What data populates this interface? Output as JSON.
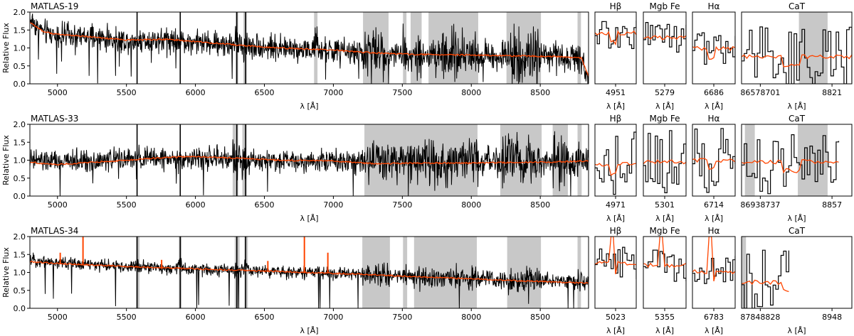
{
  "figure": {
    "ylabel": "Relative Flux",
    "xlabel": "λ [Å]",
    "ylim": [
      0.0,
      2.0
    ],
    "yticks": [
      "0.0",
      "0.5",
      "1.0",
      "1.5",
      "2.0"
    ],
    "colors": {
      "data": "#000000",
      "model": "#ff4500",
      "mask": "#c8c8c8",
      "frame": "#000000"
    }
  },
  "chart_data": [
    {
      "type": "line",
      "title": "MATLAS-19",
      "xlim": [
        4800,
        8850
      ],
      "ylim": [
        0.0,
        2.0
      ],
      "xticks": [
        "5000",
        "5500",
        "6000",
        "6500",
        "7000",
        "7500",
        "8000",
        "8500"
      ],
      "masked_regions": [
        [
          6290,
          6310
        ],
        [
          6348,
          6372
        ],
        [
          6860,
          6885
        ],
        [
          7215,
          7400
        ],
        [
          7505,
          7530
        ],
        [
          7560,
          7640
        ],
        [
          7690,
          8050
        ],
        [
          8255,
          8505
        ],
        [
          8770,
          8795
        ]
      ],
      "series": [
        {
          "role": "data",
          "color": "#000000",
          "noise": 0.24,
          "x": [
            4800,
            4900,
            5000,
            5200,
            5500,
            5800,
            6000,
            6300,
            6600,
            7000,
            7300,
            7600,
            8000,
            8300,
            8600,
            8800,
            8850
          ],
          "y": [
            1.8,
            1.45,
            1.35,
            1.3,
            1.2,
            1.25,
            1.15,
            1.1,
            1.0,
            0.92,
            0.85,
            0.82,
            0.8,
            0.78,
            0.78,
            0.75,
            0.2
          ]
        },
        {
          "role": "model",
          "color": "#ff4500",
          "x": [
            4800,
            4900,
            5000,
            5200,
            5500,
            5800,
            6000,
            6300,
            6600,
            7000,
            7300,
            7600,
            8000,
            8300,
            8600,
            8800,
            8830,
            8850
          ],
          "y": [
            1.72,
            1.45,
            1.38,
            1.32,
            1.22,
            1.24,
            1.18,
            1.08,
            1.0,
            0.94,
            0.86,
            0.82,
            0.8,
            0.78,
            0.76,
            0.72,
            0.4,
            0.2
          ]
        }
      ],
      "zoom_panels": [
        {
          "title": "Hβ",
          "xlabel": "λ [Å]",
          "tick_labels": [
            "4951"
          ],
          "masked_regions": []
        },
        {
          "title": "Mgb Fe",
          "xlabel": "λ [Å]",
          "tick_labels": [
            "5279"
          ],
          "masked_regions": []
        },
        {
          "title": "Hα",
          "xlabel": "λ [Å]",
          "tick_labels": [
            "6686"
          ],
          "masked_regions": []
        },
        {
          "title": "CaT",
          "xlabel": "λ [Å]",
          "tick_labels": [
            "86578701",
            "8821"
          ],
          "masked_regions": [
            [
              0.52,
              0.78
            ]
          ]
        }
      ]
    },
    {
      "type": "line",
      "title": "MATLAS-33",
      "xlim": [
        4800,
        8850
      ],
      "ylim": [
        0.0,
        2.0
      ],
      "xticks": [
        "5000",
        "5500",
        "6000",
        "6500",
        "7000",
        "7500",
        "8000",
        "8500"
      ],
      "masked_regions": [
        [
          6270,
          6310
        ],
        [
          6340,
          6372
        ],
        [
          7225,
          8045
        ],
        [
          8210,
          8510
        ],
        [
          8590,
          8700
        ],
        [
          8770,
          8800
        ]
      ],
      "series": [
        {
          "role": "data",
          "color": "#000000",
          "noise": 0.22,
          "x": [
            4800,
            5000,
            5300,
            5600,
            6000,
            6400,
            6800,
            7200,
            7600,
            8000,
            8400,
            8850
          ],
          "y": [
            1.0,
            0.95,
            1.0,
            1.05,
            1.05,
            1.0,
            1.0,
            1.0,
            0.98,
            0.95,
            0.95,
            0.95
          ]
        },
        {
          "role": "model",
          "color": "#ff4500",
          "x": [
            4800,
            4900,
            5000,
            5200,
            5500,
            5800,
            6000,
            6300,
            6600,
            7000,
            7300,
            7600,
            8000,
            8300,
            8600,
            8850
          ],
          "y": [
            0.95,
            0.9,
            0.88,
            0.93,
            1.0,
            1.08,
            1.1,
            1.06,
            1.0,
            0.98,
            0.9,
            0.92,
            0.92,
            0.94,
            0.95,
            0.98
          ]
        }
      ],
      "zoom_panels": [
        {
          "title": "Hβ",
          "xlabel": "λ [Å]",
          "tick_labels": [
            "4971"
          ],
          "masked_regions": []
        },
        {
          "title": "Mgb Fe",
          "xlabel": "λ [Å]",
          "tick_labels": [
            "5301"
          ],
          "masked_regions": []
        },
        {
          "title": "Hα",
          "xlabel": "λ [Å]",
          "tick_labels": [
            "6714"
          ],
          "masked_regions": []
        },
        {
          "title": "CaT",
          "xlabel": "λ [Å]",
          "tick_labels": [
            "86938737",
            "8857"
          ],
          "masked_regions": [
            [
              0.03,
              0.12
            ],
            [
              0.51,
              0.78
            ]
          ]
        }
      ]
    },
    {
      "type": "line",
      "title": "MATLAS-34",
      "xlim": [
        4800,
        8850
      ],
      "ylim": [
        0.0,
        2.0
      ],
      "xticks": [
        "5000",
        "5500",
        "6000",
        "6500",
        "7000",
        "7500",
        "8000",
        "8500"
      ],
      "masked_regions": [
        [
          5570,
          5595
        ],
        [
          5880,
          5900
        ],
        [
          6285,
          6320
        ],
        [
          6355,
          6380
        ],
        [
          7210,
          7410
        ],
        [
          7505,
          7535
        ],
        [
          7585,
          8040
        ],
        [
          8260,
          8505
        ],
        [
          8770,
          8795
        ]
      ],
      "series": [
        {
          "role": "data",
          "color": "#000000",
          "noise": 0.12,
          "x": [
            4800,
            5000,
            5300,
            5600,
            6000,
            6400,
            6800,
            7200,
            7600,
            8000,
            8400,
            8850
          ],
          "y": [
            1.35,
            1.28,
            1.2,
            1.15,
            1.1,
            1.05,
            1.0,
            0.95,
            0.88,
            0.82,
            0.78,
            0.72
          ]
        },
        {
          "role": "model",
          "color": "#ff4500",
          "x": [
            4800,
            5000,
            5300,
            5600,
            6000,
            6400,
            6800,
            7200,
            7600,
            8000,
            8400,
            8850
          ],
          "y": [
            1.3,
            1.25,
            1.2,
            1.15,
            1.1,
            1.05,
            1.0,
            0.95,
            0.88,
            0.82,
            0.76,
            0.7
          ]
        }
      ],
      "emission_lines": [
        [
          5020,
          1.55
        ],
        [
          5185,
          2.0
        ],
        [
          5755,
          1.35
        ],
        [
          6525,
          1.32
        ],
        [
          6790,
          2.0
        ],
        [
          6960,
          1.55
        ]
      ],
      "zoom_panels": [
        {
          "title": "Hβ",
          "xlabel": "λ [Å]",
          "tick_labels": [
            "5023"
          ],
          "masked_regions": []
        },
        {
          "title": "Mgb Fe",
          "xlabel": "λ [Å]",
          "tick_labels": [
            "5355"
          ],
          "masked_regions": []
        },
        {
          "title": "Hα",
          "xlabel": "λ [Å]",
          "tick_labels": [
            "6783"
          ],
          "masked_regions": []
        },
        {
          "title": "CaT",
          "xlabel": "λ [Å]",
          "tick_labels": [
            "87848828",
            "8948"
          ],
          "masked_regions": [
            [
              0.0,
              0.04
            ]
          ]
        }
      ]
    }
  ]
}
